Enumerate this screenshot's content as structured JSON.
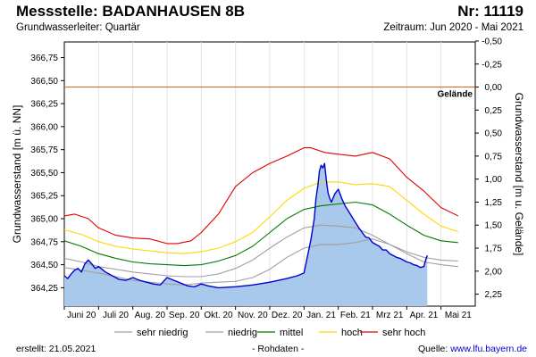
{
  "header": {
    "title": "Messstelle: BADANHAUSEN 8B",
    "number": "Nr: 11119",
    "aquifer": "Grundwasserleiter: Quartär",
    "period": "Zeitraum: Jun 2020 - Mai 2021"
  },
  "footer": {
    "created_label": "erstellt:",
    "created_date": "21.05.2021",
    "rawdata": "- Rohdaten -",
    "source_label": "Quelle:",
    "source_url": "www.lfu.bayern.de"
  },
  "chart_data": {
    "type": "area",
    "ylabel_left": "Grundwasserstand [m ü. NN]",
    "ylabel_right": "Grundwasserstand [m u. Gelände]",
    "ylim_left": [
      364.05,
      366.92
    ],
    "left_ticks": [
      "364,25",
      "364,50",
      "364,75",
      "365,00",
      "365,25",
      "365,50",
      "365,75",
      "366,00",
      "366,25",
      "366,50",
      "366,75"
    ],
    "right_ticks": [
      "-0,50",
      "-0,25",
      "0,00",
      "0,25",
      "0,50",
      "0,75",
      "1,00",
      "1,25",
      "1,50",
      "1,75",
      "2,00",
      "2,25"
    ],
    "ground_level": 366.43,
    "ground_label": "Gelände",
    "x_unit": "months since 2020-06-01",
    "month_labels": [
      "Juni 20",
      "Juli 20",
      "Aug. 20",
      "Sep. 20",
      "Okt. 20",
      "Nov. 20",
      "Dez. 20",
      "Jan. 21",
      "Feb. 21",
      "Mrz 21",
      "Apr. 21",
      "Mai 21"
    ],
    "legend": [
      {
        "name": "sehr niedrig",
        "color": "#a0a0a0"
      },
      {
        "name": "niedrig",
        "color": "#a0a0a0"
      },
      {
        "name": "mittel",
        "color": "#007800"
      },
      {
        "name": "hoch",
        "color": "#ffd800"
      },
      {
        "name": "sehr hoch",
        "color": "#e00000"
      }
    ],
    "colors": {
      "measured_fill": "#a8c8ec",
      "measured_line": "#0000d0",
      "ground_line": "#d46a2a"
    },
    "series": [
      {
        "name": "sehr hoch",
        "x": [
          0,
          0.3,
          0.7,
          1.0,
          1.5,
          2.0,
          2.5,
          3.0,
          3.3,
          3.7,
          4.0,
          4.5,
          5.0,
          5.5,
          6.0,
          6.5,
          7.0,
          7.2,
          7.6,
          8.0,
          8.5,
          9.0,
          9.5,
          10.0,
          10.5,
          11.0,
          11.5
        ],
        "values": [
          365.03,
          365.05,
          365.0,
          364.9,
          364.82,
          364.79,
          364.78,
          364.73,
          364.73,
          364.76,
          364.85,
          365.05,
          365.35,
          365.5,
          365.6,
          365.68,
          365.77,
          365.77,
          365.72,
          365.7,
          365.68,
          365.72,
          365.65,
          365.45,
          365.3,
          365.12,
          365.03
        ]
      },
      {
        "name": "hoch",
        "x": [
          0,
          0.5,
          1.0,
          1.5,
          2.0,
          2.5,
          3.0,
          3.5,
          4.0,
          4.5,
          5.0,
          5.5,
          6.0,
          6.5,
          7.0,
          7.5,
          8.0,
          8.5,
          9.0,
          9.5,
          10.0,
          10.5,
          11.0,
          11.5
        ],
        "values": [
          364.88,
          364.83,
          364.75,
          364.7,
          364.67,
          364.65,
          364.63,
          364.62,
          364.64,
          364.68,
          364.75,
          364.85,
          365.02,
          365.2,
          365.33,
          365.4,
          365.4,
          365.37,
          365.38,
          365.35,
          365.2,
          365.05,
          364.92,
          364.86
        ]
      },
      {
        "name": "mittel",
        "x": [
          0,
          0.5,
          1.0,
          1.5,
          2.0,
          2.5,
          3.0,
          3.5,
          4.0,
          4.5,
          5.0,
          5.5,
          6.0,
          6.5,
          7.0,
          7.5,
          8.0,
          8.5,
          9.0,
          9.5,
          10.0,
          10.5,
          11.0,
          11.5
        ],
        "values": [
          364.76,
          364.7,
          364.62,
          364.57,
          364.53,
          364.51,
          364.5,
          364.49,
          364.5,
          364.54,
          364.6,
          364.7,
          364.85,
          365.0,
          365.1,
          365.14,
          365.16,
          365.18,
          365.15,
          365.05,
          364.93,
          364.82,
          364.76,
          364.74
        ]
      },
      {
        "name": "niedrig",
        "x": [
          0,
          0.5,
          1.0,
          1.5,
          2.0,
          2.5,
          3.0,
          3.5,
          4.0,
          4.5,
          5.0,
          5.5,
          6.0,
          6.5,
          7.0,
          7.5,
          8.0,
          8.5,
          9.0,
          9.5,
          10.0,
          10.5,
          11.0,
          11.5
        ],
        "values": [
          364.57,
          364.53,
          364.48,
          364.45,
          364.42,
          364.4,
          364.38,
          364.37,
          364.37,
          364.4,
          364.46,
          364.55,
          364.68,
          364.8,
          364.9,
          364.93,
          364.92,
          364.9,
          364.82,
          364.72,
          364.64,
          364.58,
          364.55,
          364.54
        ]
      },
      {
        "name": "sehr niedrig",
        "x": [
          0,
          0.5,
          1.0,
          1.5,
          2.0,
          2.5,
          3.0,
          3.5,
          4.0,
          4.5,
          5.0,
          5.5,
          6.0,
          6.5,
          7.0,
          7.5,
          8.0,
          8.5,
          9.0,
          9.5,
          10.0,
          10.5,
          11.0,
          11.5
        ],
        "values": [
          364.47,
          364.44,
          364.41,
          364.37,
          364.33,
          364.31,
          364.29,
          364.28,
          364.3,
          364.31,
          364.32,
          364.36,
          364.45,
          364.58,
          364.68,
          364.72,
          364.72,
          364.74,
          364.78,
          364.72,
          364.62,
          364.53,
          364.5,
          364.48
        ]
      },
      {
        "name": "Messwerte",
        "x": [
          0,
          0.1,
          0.2,
          0.3,
          0.4,
          0.5,
          0.6,
          0.7,
          0.8,
          0.9,
          1.0,
          1.1,
          1.2,
          1.3,
          1.4,
          1.5,
          1.6,
          1.8,
          2.0,
          2.2,
          2.4,
          2.6,
          2.8,
          3.0,
          3.2,
          3.4,
          3.6,
          3.8,
          4.0,
          4.2,
          4.5,
          5.0,
          5.5,
          6.0,
          6.5,
          6.8,
          7.0,
          7.2,
          7.3,
          7.35,
          7.4,
          7.45,
          7.5,
          7.55,
          7.6,
          7.65,
          7.7,
          7.75,
          7.8,
          7.9,
          8.0,
          8.1,
          8.2,
          8.3,
          8.4,
          8.5,
          8.6,
          8.7,
          8.8,
          8.9,
          9.0,
          9.1,
          9.2,
          9.3,
          9.4,
          9.5,
          9.6,
          9.7,
          9.8,
          9.9,
          10.0,
          10.1,
          10.2,
          10.3,
          10.4,
          10.5,
          10.55,
          10.6
        ],
        "values": [
          364.38,
          364.35,
          364.4,
          364.44,
          364.46,
          364.42,
          364.51,
          364.55,
          364.51,
          364.46,
          364.48,
          364.45,
          364.42,
          364.4,
          364.38,
          364.36,
          364.34,
          364.33,
          364.36,
          364.33,
          364.31,
          364.29,
          364.28,
          364.36,
          364.33,
          364.3,
          364.27,
          364.26,
          364.29,
          364.27,
          364.25,
          364.26,
          364.28,
          364.31,
          364.35,
          364.38,
          364.41,
          364.77,
          365.0,
          365.22,
          365.35,
          365.52,
          365.58,
          365.55,
          365.6,
          365.42,
          365.28,
          365.22,
          365.18,
          365.27,
          365.32,
          365.22,
          365.14,
          365.08,
          365.02,
          364.96,
          364.9,
          364.85,
          364.8,
          364.79,
          364.74,
          364.72,
          364.7,
          364.66,
          364.66,
          364.62,
          364.6,
          364.58,
          364.57,
          364.55,
          364.53,
          364.52,
          364.5,
          364.49,
          364.47,
          364.48,
          364.55,
          364.6
        ]
      }
    ]
  }
}
